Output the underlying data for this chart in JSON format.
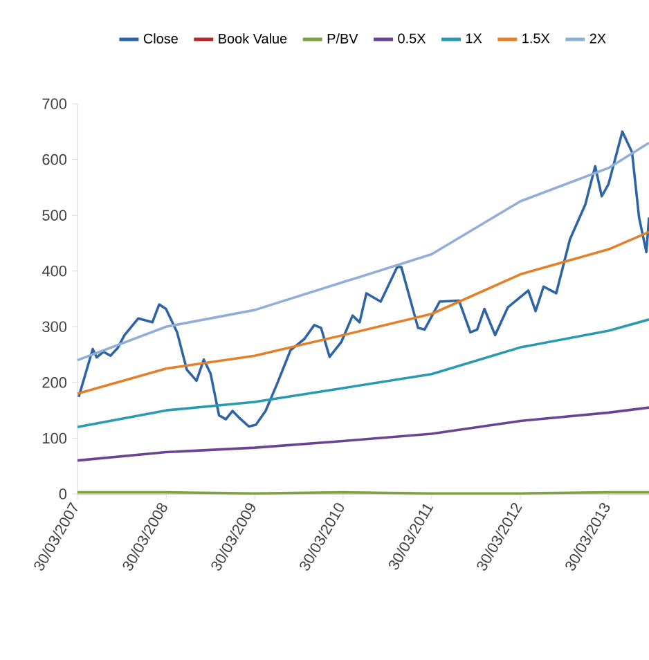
{
  "chart_data": {
    "type": "line",
    "legend": "top",
    "grid": false,
    "marker": "none",
    "line_style": "solid",
    "xlim": [
      "2007-03-30",
      "2013-09-12"
    ],
    "xticks": [
      {
        "value": "2007-03-30",
        "label": "30/03/2007"
      },
      {
        "value": "2008-03-30",
        "label": "30/03/2008"
      },
      {
        "value": "2009-03-30",
        "label": "30/03/2009"
      },
      {
        "value": "2010-03-30",
        "label": "30/03/2010"
      },
      {
        "value": "2011-03-30",
        "label": "30/03/2011"
      },
      {
        "value": "2012-03-30",
        "label": "30/03/2012"
      },
      {
        "value": "2013-03-30",
        "label": "30/03/2013"
      }
    ],
    "ylim": [
      0,
      700
    ],
    "yticks": [
      0,
      100,
      200,
      300,
      400,
      500,
      600,
      700
    ],
    "series": [
      {
        "name": "Close",
        "color": "#2e64a6",
        "x": [
          "2007-04-04",
          "2007-06-01",
          "2007-06-17",
          "2007-07-15",
          "2007-08-13",
          "2007-09-12",
          "2007-10-10",
          "2007-12-06",
          "2008-02-02",
          "2008-03-01",
          "2008-03-29",
          "2008-05-14",
          "2008-06-23",
          "2008-08-02",
          "2008-09-01",
          "2008-09-29",
          "2008-11-03",
          "2008-12-01",
          "2008-12-29",
          "2009-01-27",
          "2009-03-06",
          "2009-04-04",
          "2009-05-14",
          "2009-06-29",
          "2009-08-25",
          "2009-10-21",
          "2009-12-01",
          "2009-12-29",
          "2010-02-02",
          "2010-03-23",
          "2010-05-08",
          "2010-06-06",
          "2010-07-04",
          "2010-09-01",
          "2010-11-08",
          "2010-11-25",
          "2011-02-02",
          "2011-03-01",
          "2011-05-02",
          "2011-07-21",
          "2011-09-06",
          "2011-10-04",
          "2011-11-03",
          "2011-12-17",
          "2012-02-08",
          "2012-05-02",
          "2012-06-01",
          "2012-07-04",
          "2012-08-25",
          "2012-10-21",
          "2012-12-23",
          "2013-02-02",
          "2013-03-01",
          "2013-03-29",
          "2013-05-25",
          "2013-07-04",
          "2013-08-02",
          "2013-09-01",
          "2013-09-12"
        ],
        "values": [
          174,
          260,
          245,
          255,
          248,
          262,
          285,
          315,
          308,
          340,
          332,
          290,
          223,
          203,
          241,
          216,
          141,
          134,
          149,
          136,
          121,
          124,
          149,
          196,
          258,
          278,
          303,
          298,
          246,
          273,
          320,
          308,
          360,
          345,
          407,
          407,
          298,
          295,
          345,
          347,
          290,
          295,
          332,
          285,
          335,
          365,
          328,
          372,
          360,
          457,
          519,
          588,
          534,
          556,
          650,
          613,
          496,
          434,
          496
        ]
      },
      {
        "name": "Book Value",
        "color": "#b22b2b",
        "values": [
          null,
          null,
          null,
          null,
          null,
          null,
          null,
          null
        ]
      },
      {
        "name": "P/BV",
        "color": "#7ea23e",
        "values": [
          3,
          3,
          1,
          3,
          1,
          1,
          3,
          3
        ]
      },
      {
        "name": "0.5X",
        "color": "#6a4393",
        "values": [
          60,
          75,
          83,
          95,
          108,
          131,
          146,
          155
        ]
      },
      {
        "name": "1X",
        "color": "#2a9ab0",
        "values": [
          120,
          150,
          165,
          190,
          215,
          263,
          293,
          313
        ]
      },
      {
        "name": "1.5X",
        "color": "#e47f2a",
        "values": [
          180,
          225,
          248,
          285,
          323,
          394,
          439,
          470
        ]
      },
      {
        "name": "2X",
        "color": "#92aed8",
        "values": [
          240,
          300,
          330,
          380,
          430,
          525,
          585,
          630
        ]
      }
    ],
    "x": [
      "2007-03-30",
      "2008-03-30",
      "2009-03-30",
      "2010-03-30",
      "2011-03-30",
      "2012-03-30",
      "2013-03-30",
      "2013-09-12"
    ]
  }
}
